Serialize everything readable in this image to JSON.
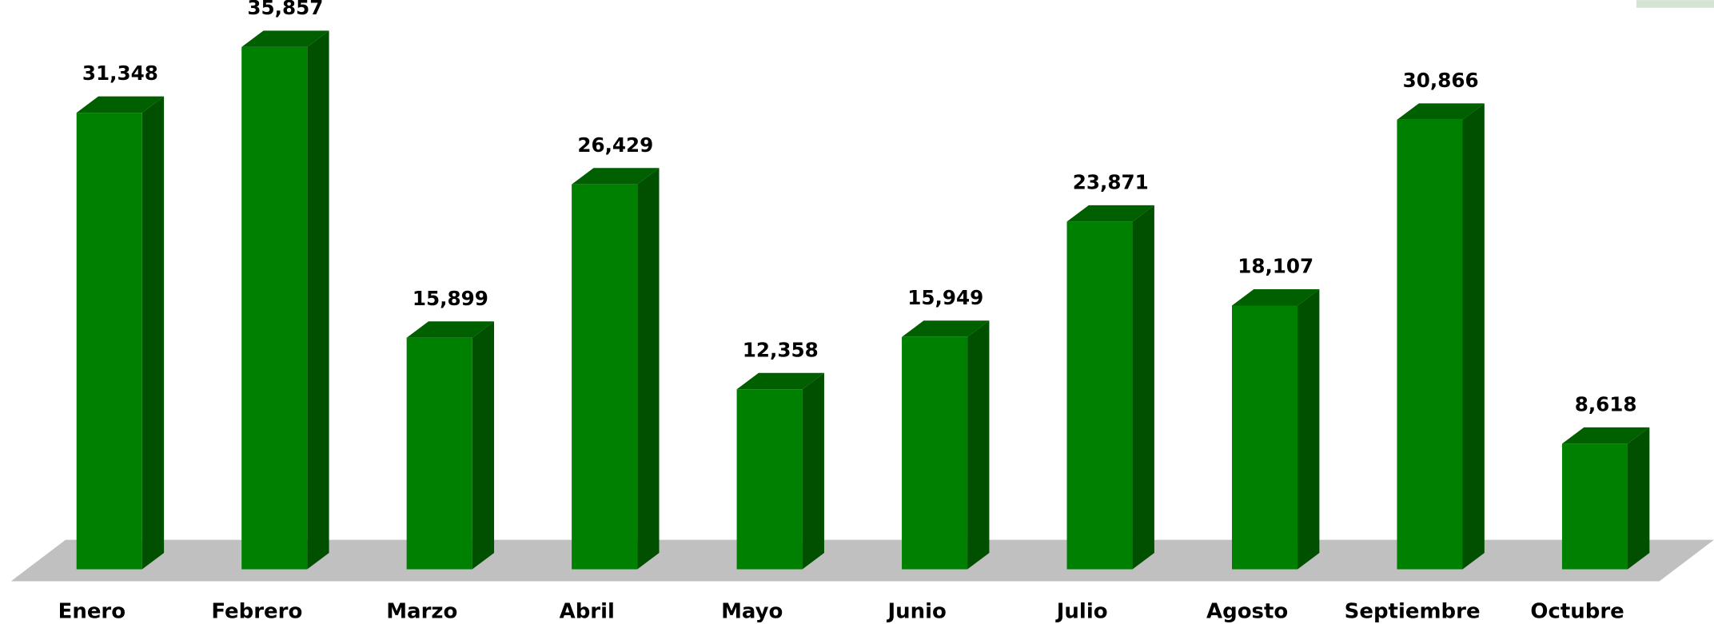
{
  "chart_data": {
    "type": "bar3d",
    "categories": [
      "Enero",
      "Febrero",
      "Marzo",
      "Abril",
      "Mayo",
      "Junio",
      "Julio",
      "Agosto",
      "Septiembre",
      "Octubre"
    ],
    "values": [
      31348,
      35857,
      15899,
      26429,
      12358,
      15949,
      23871,
      18107,
      30866,
      8618
    ],
    "value_labels": [
      "31,348",
      "35,857",
      "15,899",
      "26,429",
      "12,358",
      "15,949",
      "23,871",
      "18,107",
      "30,866",
      "8,618"
    ],
    "color": "#008000"
  }
}
